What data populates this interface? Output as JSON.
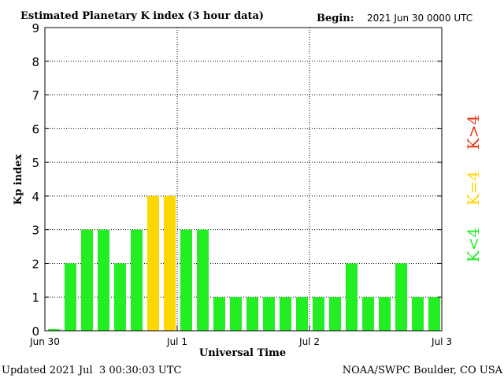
{
  "chart_data": {
    "type": "bar",
    "title": "Estimated Planetary K index (3 hour data)",
    "begin_label": "Begin:",
    "begin_value": "2021 Jun 30 0000 UTC",
    "xlabel": "Universal Time",
    "ylabel": "Kp index",
    "ylim": [
      0,
      9
    ],
    "yticks": [
      "0",
      "1",
      "2",
      "3",
      "4",
      "5",
      "6",
      "7",
      "8",
      "9"
    ],
    "xticks": [
      "Jun 30",
      "Jul 1",
      "Jul 2",
      "Jul 3"
    ],
    "values": [
      0.05,
      2,
      3,
      3,
      2,
      3,
      4,
      4,
      3,
      3,
      1,
      1,
      1,
      1,
      1,
      1,
      1,
      1,
      2,
      1,
      1,
      2,
      1,
      1
    ],
    "grid": true,
    "legend": [
      {
        "label": "K<4",
        "color": "#22ee22"
      },
      {
        "label": "K=4",
        "color": "#ffd700"
      },
      {
        "label": "K>4",
        "color": "#ee3311"
      }
    ],
    "colors": {
      "low": "#22ee22",
      "equal": "#ffd700",
      "high": "#ee3311"
    }
  },
  "footer": {
    "updated": "Updated 2021 Jul  3 00:30:03 UTC",
    "source": "NOAA/SWPC Boulder, CO USA"
  }
}
